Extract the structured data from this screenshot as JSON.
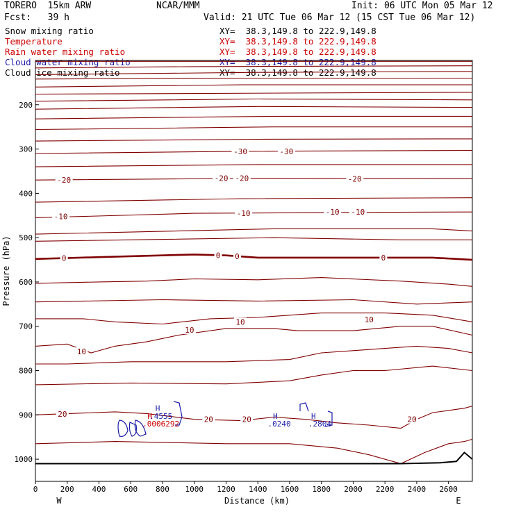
{
  "header": {
    "model": "TORERO  15km ARW",
    "center": "NCAR/MMM",
    "init": "Init: 06 UTC Mon 05 Mar 12",
    "fcst": "Fcst:   39 h",
    "valid": "Valid: 21 UTC Tue 06 Mar 12 (15 CST Tue 06 Mar 12)"
  },
  "fields": [
    {
      "name": "Snow mixing ratio",
      "xy": "XY=  38.3,149.8 to 222.9,149.8",
      "color": "#000000"
    },
    {
      "name": "Temperature",
      "xy": "XY=  38.3,149.8 to 222.9,149.8",
      "color": "#cc0000"
    },
    {
      "name": "Rain water mixing ratio",
      "xy": "XY=  38.3,149.8 to 222.9,149.8",
      "color": "#cc0000"
    },
    {
      "name": "Cloud water mixing ratio",
      "xy": "XY=  38.3,149.8 to 222.9,149.8",
      "color": "#1a1aa8"
    },
    {
      "name": "Cloud ice mixing ratio",
      "xy": "XY=  38.3,149.8 to 222.9,149.8",
      "color": "#000000"
    }
  ],
  "chart_data": {
    "type": "contour cross-section",
    "xlabel": "Distance (km)",
    "ylabel": "Pressure (hPa)",
    "xlim": [
      0,
      2750
    ],
    "ylim": [
      1050,
      100
    ],
    "x_ticks": [
      "0",
      "200",
      "400",
      "600",
      "800",
      "1000",
      "1200",
      "1400",
      "1600",
      "1800",
      "2000",
      "2200",
      "2400",
      "2600"
    ],
    "x_tick_values": [
      0,
      200,
      400,
      600,
      800,
      1000,
      1200,
      1400,
      1600,
      1800,
      2000,
      2200,
      2400,
      2600
    ],
    "y_ticks": [
      "200",
      "300",
      "400",
      "500",
      "600",
      "700",
      "800",
      "900",
      "1000"
    ],
    "y_tick_values": [
      200,
      300,
      400,
      500,
      600,
      700,
      800,
      900,
      1000
    ],
    "x_end_labels": {
      "left": "W",
      "right": "E"
    },
    "temperature_contour_color": "#800000",
    "cloud_color": "#1a1aa8",
    "temperature_contours": [
      {
        "pts": [
          [
            0,
            102
          ],
          [
            2750,
            102
          ]
        ]
      },
      {
        "pts": [
          [
            0,
            117
          ],
          [
            1000,
            114
          ],
          [
            2750,
            112
          ]
        ]
      },
      {
        "pts": [
          [
            0,
            132
          ],
          [
            1400,
            127
          ],
          [
            2750,
            125
          ]
        ]
      },
      {
        "pts": [
          [
            0,
            142
          ],
          [
            1400,
            140
          ],
          [
            2750,
            140
          ]
        ]
      },
      {
        "pts": [
          [
            0,
            160
          ],
          [
            1300,
            155
          ],
          [
            2750,
            155
          ]
        ]
      },
      {
        "pts": [
          [
            0,
            176
          ],
          [
            2750,
            172
          ]
        ]
      },
      {
        "pts": [
          [
            0,
            192
          ],
          [
            1400,
            187
          ],
          [
            2750,
            189
          ]
        ]
      },
      {
        "pts": [
          [
            0,
            210
          ],
          [
            1400,
            204
          ],
          [
            2750,
            206
          ]
        ]
      },
      {
        "pts": [
          [
            0,
            232
          ],
          [
            1500,
            226
          ],
          [
            2750,
            226
          ]
        ]
      },
      {
        "pts": [
          [
            0,
            256
          ],
          [
            1500,
            250
          ],
          [
            2750,
            250
          ]
        ]
      },
      {
        "pts": [
          [
            0,
            282
          ],
          [
            1400,
            278
          ],
          [
            2750,
            277
          ]
        ]
      },
      {
        "pts": [
          [
            0,
            310
          ],
          [
            1300,
            305
          ],
          [
            2750,
            303
          ]
        ]
      },
      {
        "pts": [
          [
            0,
            340
          ],
          [
            1400,
            335
          ],
          [
            2750,
            335
          ]
        ]
      },
      {
        "pts": [
          [
            0,
            370
          ],
          [
            1400,
            366
          ],
          [
            2750,
            367
          ]
        ]
      },
      {
        "pts": [
          [
            0,
            420
          ],
          [
            1300,
            412
          ],
          [
            2750,
            410
          ]
        ]
      },
      {
        "pts": [
          [
            0,
            455
          ],
          [
            1000,
            445
          ],
          [
            2000,
            443
          ],
          [
            2750,
            442
          ]
        ]
      },
      {
        "pts": [
          [
            0,
            492
          ],
          [
            1500,
            480
          ],
          [
            2500,
            480
          ],
          [
            2750,
            485
          ]
        ]
      },
      {
        "pts": [
          [
            0,
            508
          ],
          [
            1500,
            500
          ],
          [
            2300,
            505
          ],
          [
            2750,
            505
          ]
        ]
      },
      {
        "pts": [
          [
            0,
            548
          ],
          [
            400,
            544
          ],
          [
            1000,
            538
          ],
          [
            1200,
            540
          ],
          [
            1400,
            545
          ],
          [
            2000,
            545
          ],
          [
            2500,
            545
          ],
          [
            2750,
            550
          ]
        ],
        "bold": true
      },
      {
        "pts": [
          [
            0,
            603
          ],
          [
            400,
            600
          ],
          [
            700,
            598
          ],
          [
            1000,
            593
          ],
          [
            1400,
            595
          ],
          [
            1800,
            590
          ],
          [
            2300,
            598
          ],
          [
            2600,
            605
          ],
          [
            2750,
            610
          ]
        ]
      },
      {
        "pts": [
          [
            0,
            645
          ],
          [
            800,
            640
          ],
          [
            1400,
            643
          ],
          [
            2000,
            640
          ],
          [
            2400,
            650
          ],
          [
            2750,
            645
          ]
        ]
      },
      {
        "pts": [
          [
            0,
            683
          ],
          [
            300,
            683
          ],
          [
            500,
            690
          ],
          [
            800,
            695
          ],
          [
            1100,
            683
          ],
          [
            1400,
            680
          ],
          [
            1800,
            670
          ],
          [
            2200,
            670
          ],
          [
            2500,
            675
          ],
          [
            2750,
            690
          ]
        ]
      },
      {
        "pts": [
          [
            0,
            745
          ],
          [
            200,
            740
          ],
          [
            350,
            760
          ],
          [
            500,
            745
          ],
          [
            700,
            735
          ],
          [
            900,
            720
          ],
          [
            1200,
            705
          ],
          [
            1500,
            705
          ],
          [
            1650,
            710
          ],
          [
            2000,
            710
          ],
          [
            2300,
            700
          ],
          [
            2500,
            700
          ],
          [
            2750,
            720
          ]
        ]
      },
      {
        "pts": [
          [
            0,
            785
          ],
          [
            200,
            785
          ],
          [
            600,
            780
          ],
          [
            1200,
            780
          ],
          [
            1600,
            775
          ],
          [
            1800,
            760
          ],
          [
            2000,
            755
          ],
          [
            2200,
            750
          ],
          [
            2400,
            745
          ],
          [
            2600,
            750
          ],
          [
            2750,
            760
          ]
        ]
      },
      {
        "pts": [
          [
            0,
            832
          ],
          [
            600,
            828
          ],
          [
            1200,
            830
          ],
          [
            1600,
            823
          ],
          [
            1800,
            810
          ],
          [
            2000,
            800
          ],
          [
            2200,
            800
          ],
          [
            2500,
            790
          ],
          [
            2750,
            800
          ]
        ]
      },
      {
        "pts": [
          [
            0,
            900
          ],
          [
            500,
            893
          ],
          [
            700,
            897
          ],
          [
            1000,
            910
          ],
          [
            1300,
            913
          ],
          [
            1500,
            905
          ],
          [
            1700,
            910
          ],
          [
            1900,
            918
          ],
          [
            2100,
            923
          ],
          [
            2300,
            930
          ],
          [
            2400,
            910
          ],
          [
            2500,
            895
          ],
          [
            2700,
            885
          ],
          [
            2750,
            880
          ]
        ]
      },
      {
        "pts": [
          [
            0,
            965
          ],
          [
            500,
            960
          ],
          [
            800,
            962
          ],
          [
            1200,
            965
          ],
          [
            1600,
            965
          ],
          [
            1900,
            975
          ],
          [
            2100,
            990
          ],
          [
            2300,
            1010
          ],
          [
            2450,
            985
          ],
          [
            2600,
            965
          ],
          [
            2700,
            960
          ],
          [
            2750,
            955
          ]
        ]
      }
    ],
    "temperature_labels": [
      {
        "text": "-30",
        "x": 1290,
        "p": 305
      },
      {
        "text": "-30",
        "x": 1580,
        "p": 305
      },
      {
        "text": "-20",
        "x": 180,
        "p": 370
      },
      {
        "text": "-20",
        "x": 1170,
        "p": 366
      },
      {
        "text": "-20",
        "x": 1300,
        "p": 366
      },
      {
        "text": "-20",
        "x": 2010,
        "p": 367
      },
      {
        "text": "-10",
        "x": 160,
        "p": 452
      },
      {
        "text": "-10",
        "x": 1310,
        "p": 445
      },
      {
        "text": "-10",
        "x": 1870,
        "p": 442
      },
      {
        "text": "-10",
        "x": 2030,
        "p": 442
      },
      {
        "text": "0",
        "x": 180,
        "p": 546
      },
      {
        "text": "0",
        "x": 1150,
        "p": 540
      },
      {
        "text": "0",
        "x": 1270,
        "p": 542
      },
      {
        "text": "0",
        "x": 2190,
        "p": 545
      },
      {
        "text": "10",
        "x": 1290,
        "p": 690
      },
      {
        "text": "10",
        "x": 2100,
        "p": 685
      },
      {
        "text": "10",
        "x": 970,
        "p": 708
      },
      {
        "text": "10",
        "x": 290,
        "p": 757
      },
      {
        "text": "20",
        "x": 170,
        "p": 898
      },
      {
        "text": "20",
        "x": 1090,
        "p": 910
      },
      {
        "text": "20",
        "x": 1330,
        "p": 910
      },
      {
        "text": "20",
        "x": 2370,
        "p": 910
      }
    ],
    "terrain": [
      [
        0,
        1010
      ],
      [
        1500,
        1010
      ],
      [
        2300,
        1010
      ],
      [
        2550,
        1008
      ],
      [
        2650,
        1005
      ],
      [
        2700,
        985
      ],
      [
        2750,
        1000
      ]
    ],
    "cloud_labels": [
      {
        "text": "H",
        "x": 770,
        "p": 885,
        "color": "#1a1aa8"
      },
      {
        "text": "H",
        "x": 720,
        "p": 903,
        "color": "#cc0000"
      },
      {
        "text": ".4555",
        "x": 790,
        "p": 903,
        "color": "#1a1aa8"
      },
      {
        "text": ".0006292",
        "x": 790,
        "p": 920,
        "color": "#cc0000"
      },
      {
        "text": "H",
        "x": 1510,
        "p": 903,
        "color": "#1a1aa8"
      },
      {
        "text": ".0240",
        "x": 1535,
        "p": 920,
        "color": "#1a1aa8"
      },
      {
        "text": "H",
        "x": 1750,
        "p": 903,
        "color": "#1a1aa8"
      },
      {
        "text": ".2804",
        "x": 1790,
        "p": 920,
        "color": "#1a1aa8"
      }
    ]
  }
}
